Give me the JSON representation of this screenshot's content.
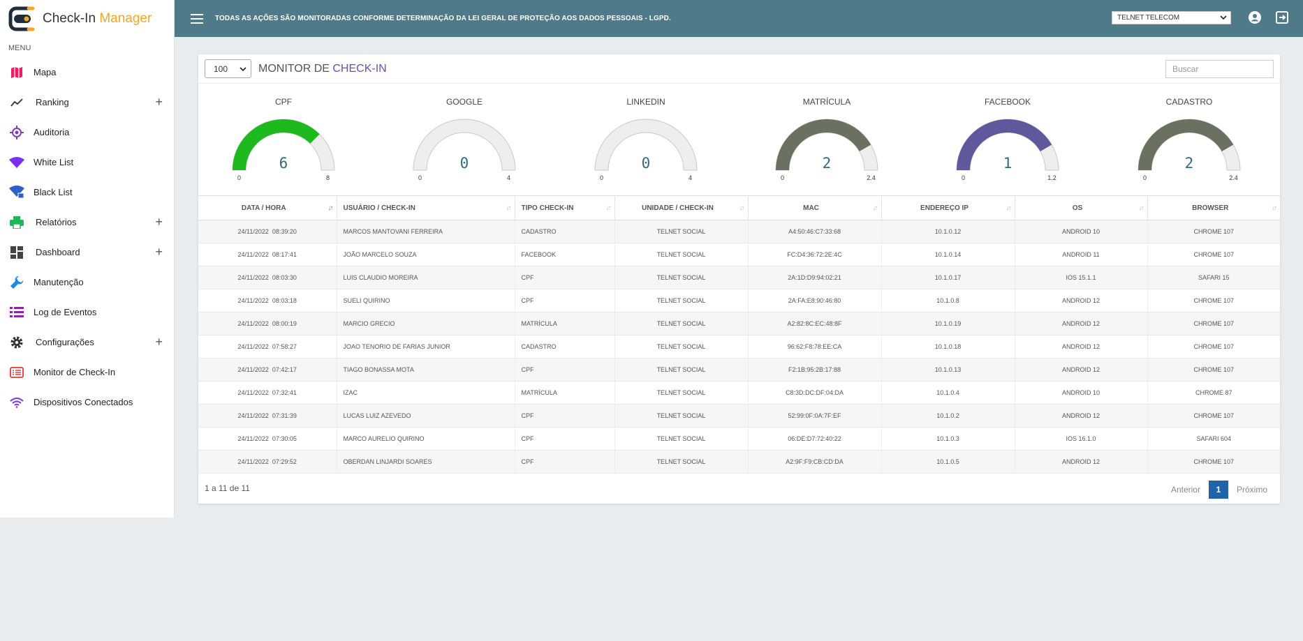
{
  "brand": {
    "name": "Check-In",
    "accent": "Manager"
  },
  "sidebar": {
    "menu_label": "MENU",
    "items": [
      {
        "label": "Mapa",
        "icon": "map-icon",
        "expandable": false
      },
      {
        "label": "Ranking",
        "icon": "trending-up-icon",
        "expandable": true
      },
      {
        "label": "Auditoria",
        "icon": "target-icon",
        "expandable": false
      },
      {
        "label": "White List",
        "icon": "wifi-icon",
        "expandable": false
      },
      {
        "label": "Black List",
        "icon": "wifi-lock-icon",
        "expandable": false
      },
      {
        "label": "Relatórios",
        "icon": "printer-icon",
        "expandable": true
      },
      {
        "label": "Dashboard",
        "icon": "dashboard-icon",
        "expandable": true
      },
      {
        "label": "Manutenção",
        "icon": "wrench-icon",
        "expandable": false
      },
      {
        "label": "Log de Eventos",
        "icon": "list-icon",
        "expandable": false
      },
      {
        "label": "Configurações",
        "icon": "gear-icon",
        "expandable": true
      },
      {
        "label": "Monitor de Check-In",
        "icon": "monitor-list-icon",
        "expandable": false
      },
      {
        "label": "Dispositivos Conectados",
        "icon": "wifi-signal-icon",
        "expandable": false
      }
    ],
    "plus": "+"
  },
  "topbar": {
    "notice": "TODAS AS AÇÕES SÃO MONITORADAS CONFORME DETERMINAÇÃO DA LEI GERAL DE PROTEÇÃO AOS DADOS PESSOAIS - LGPD.",
    "company_selected": "TELNET TELECOM"
  },
  "card": {
    "page_size": "100",
    "title_main": "MONITOR DE ",
    "title_accent": "CHECK-IN",
    "search_placeholder": "Buscar"
  },
  "gauges": [
    {
      "title": "CPF",
      "value": 6,
      "min": 0,
      "max": 8,
      "min_label": "0",
      "max_label": "8",
      "color": "#1db91d"
    },
    {
      "title": "GOOGLE",
      "value": 0,
      "min": 0,
      "max": 4,
      "min_label": "0",
      "max_label": "4",
      "color": "#1db91d"
    },
    {
      "title": "LINKEDIN",
      "value": 0,
      "min": 0,
      "max": 4,
      "min_label": "0",
      "max_label": "4",
      "color": "#1db91d"
    },
    {
      "title": "MATRÍCULA",
      "value": 2,
      "min": 0,
      "max": 2.4,
      "min_label": "0",
      "max_label": "2.4",
      "color": "#6b7160"
    },
    {
      "title": "FACEBOOK",
      "value": 1,
      "min": 0,
      "max": 1.2,
      "min_label": "0",
      "max_label": "1.2",
      "color": "#5f589c"
    },
    {
      "title": "CADASTRO",
      "value": 2,
      "min": 0,
      "max": 2.4,
      "min_label": "0",
      "max_label": "2.4",
      "color": "#6b7160"
    }
  ],
  "table": {
    "columns": [
      "DATA / HORA",
      "USUÁRIO / CHECK-IN",
      "TIPO CHECK-IN",
      "UNIDADE / CHECK-IN",
      "MAC",
      "ENDEREÇO IP",
      "OS",
      "BROWSER"
    ],
    "rows": [
      [
        "24/11/2022  08:39:20",
        "MARCOS MANTOVANI FERREIRA",
        "CADASTRO",
        "TELNET SOCIAL",
        "A4:50:46:C7:33:68",
        "10.1.0.12",
        "ANDROID 10",
        "CHROME 107"
      ],
      [
        "24/11/2022  08:17:41",
        "JOÃO MARCELO SOUZA",
        "FACEBOOK",
        "TELNET SOCIAL",
        "FC:D4:36:72:2E:4C",
        "10.1.0.14",
        "ANDROID 11",
        "CHROME 107"
      ],
      [
        "24/11/2022  08:03:30",
        "LUIS CLAUDIO MOREIRA",
        "CPF",
        "TELNET SOCIAL",
        "2A:1D:D9:94:02:21",
        "10.1.0.17",
        "IOS 15.1.1",
        "SAFARI 15"
      ],
      [
        "24/11/2022  08:03:18",
        "SUELI QUIRINO",
        "CPF",
        "TELNET SOCIAL",
        "2A:FA:E8:90:46:80",
        "10.1.0.8",
        "ANDROID 12",
        "CHROME 107"
      ],
      [
        "24/11/2022  08:00:19",
        "MARCIO GRECIO",
        "MATRÍCULA",
        "TELNET SOCIAL",
        "A2:82:8C:EC:48:8F",
        "10.1.0.19",
        "ANDROID 12",
        "CHROME 107"
      ],
      [
        "24/11/2022  07:58:27",
        "JOAO TENORIO DE FARIAS JUNIOR",
        "CADASTRO",
        "TELNET SOCIAL",
        "96:62:F8:78:EE:CA",
        "10.1.0.18",
        "ANDROID 12",
        "CHROME 107"
      ],
      [
        "24/11/2022  07:42:17",
        "TIAGO BONASSA MOTA",
        "CPF",
        "TELNET SOCIAL",
        "F2:1B:95:2B:17:88",
        "10.1.0.13",
        "ANDROID 12",
        "CHROME 107"
      ],
      [
        "24/11/2022  07:32:41",
        "IZAC",
        "MATRÍCULA",
        "TELNET SOCIAL",
        "C8:3D:DC:DF:04:DA",
        "10.1.0.4",
        "ANDROID 10",
        "CHROME 87"
      ],
      [
        "24/11/2022  07:31:39",
        "LUCAS LUIZ AZEVEDO",
        "CPF",
        "TELNET SOCIAL",
        "52:99:0F:0A:7F:EF",
        "10.1.0.2",
        "ANDROID 12",
        "CHROME 107"
      ],
      [
        "24/11/2022  07:30:05",
        "MARCO AURELIO QUIRINO",
        "CPF",
        "TELNET SOCIAL",
        "06:DE:D7:72:40:22",
        "10.1.0.3",
        "IOS 16.1.0",
        "SAFARI 604"
      ],
      [
        "24/11/2022  07:29:52",
        "OBERDAN LINJARDI SOARES",
        "CPF",
        "TELNET SOCIAL",
        "A2:9F:F9:CB:CD:DA",
        "10.1.0.5",
        "ANDROID 12",
        "CHROME 107"
      ]
    ]
  },
  "footer": {
    "records_info": "1 a 11 de 11",
    "prev_label": "Anterior",
    "current_page": "1",
    "next_label": "Próximo"
  },
  "colors": {
    "topbar": "#4f7a8a",
    "brand_accent": "#f5a623",
    "title_accent": "#6a4fb0",
    "pagination_active": "#1f63a8",
    "gauge_track": "#eeeeee"
  }
}
